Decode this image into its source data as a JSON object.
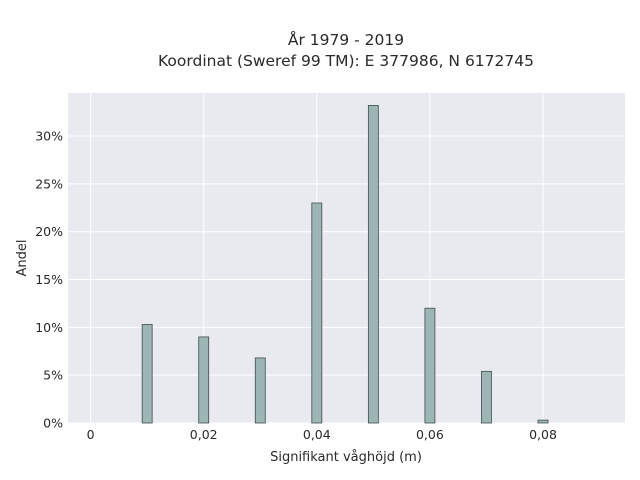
{
  "chart_data": {
    "type": "bar",
    "title": "År 1979 - 2019",
    "subtitle": "Koordinat (Sweref 99 TM): E 377986, N 6172745",
    "xlabel": "Signifikant våghöjd (m)",
    "ylabel": "Andel",
    "x": [
      0.01,
      0.02,
      0.03,
      0.04,
      0.05,
      0.06,
      0.07,
      0.08
    ],
    "values": [
      10.3,
      9.0,
      6.8,
      23.0,
      33.2,
      12.0,
      5.4,
      0.3
    ],
    "xlim": [
      -0.004,
      0.0945
    ],
    "ylim": [
      0,
      34.5
    ],
    "x_ticks": [
      0,
      0.02,
      0.04,
      0.06,
      0.08
    ],
    "x_tick_labels": [
      "0",
      "0,02",
      "0,04",
      "0,06",
      "0,08"
    ],
    "y_ticks": [
      0,
      5,
      10,
      15,
      20,
      25,
      30
    ],
    "y_tick_labels": [
      "0%",
      "5%",
      "10%",
      "15%",
      "20%",
      "25%",
      "30%"
    ],
    "grid": true,
    "colors": {
      "bar_fill": "#9eb5b5",
      "bar_stroke": "#3d4f4f",
      "plot_background": "#e9e9f0",
      "grid": "#ffffff"
    }
  }
}
